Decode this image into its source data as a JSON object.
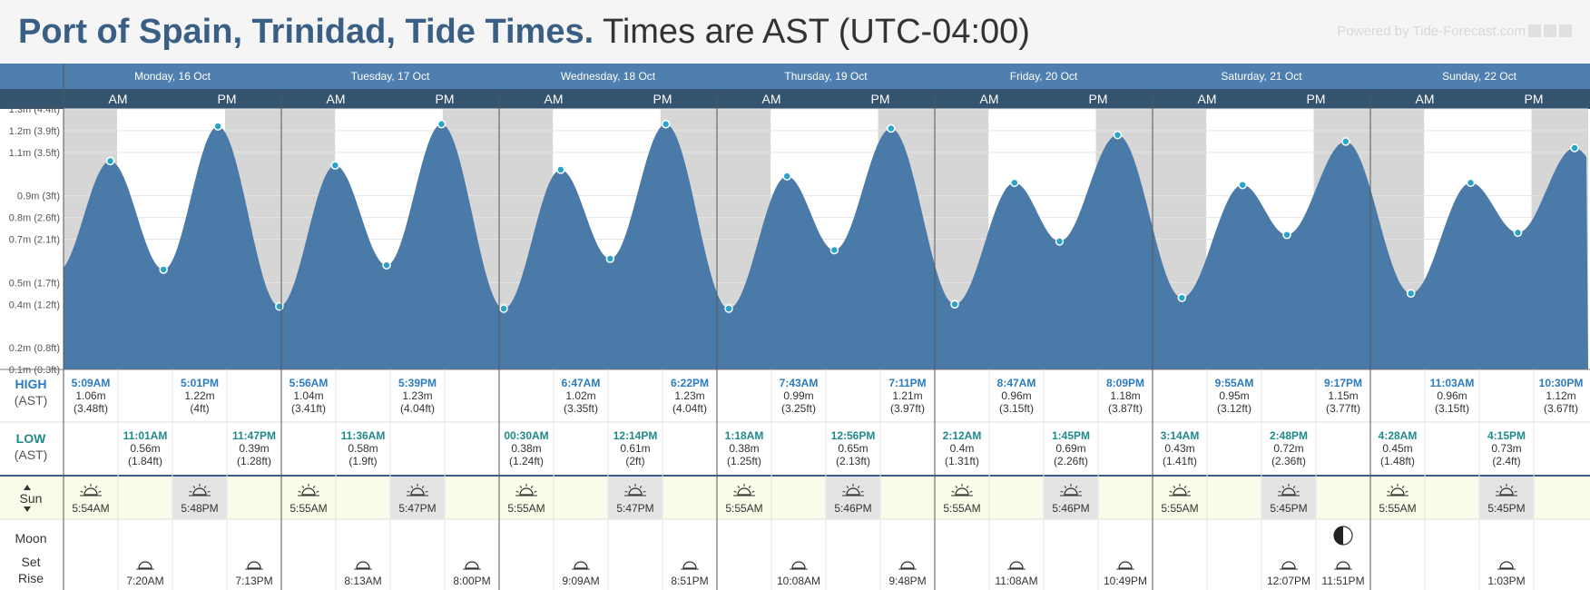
{
  "header": {
    "location": "Port of Spain, Trinidad, Tide Times.",
    "timezone": "Times are AST (UTC-04:00)",
    "powered_by": "Powered by Tide-Forecast.com"
  },
  "row_labels": {
    "high": "HIGH",
    "high_tz": "(AST)",
    "low": "LOW",
    "low_tz": "(AST)",
    "sun": "Sun",
    "moon": "Moon",
    "set": "Set",
    "rise": "Rise"
  },
  "colors": {
    "tide_fill": "#4a7aa8",
    "header_blue": "#4f7fae",
    "ampm_bar": "#35546f",
    "night_grey": "#d6d6d6",
    "marker": "#2aa3c9",
    "high_text": "#2a7bbf",
    "low_text": "#1f8a8a",
    "sun_bg": "#fbfbea"
  },
  "chart_data": {
    "type": "area",
    "title": "Port of Spain, Trinidad, Tide Times.",
    "ylabel": "",
    "ylim": [
      0.1,
      1.3
    ],
    "yticks": [
      {
        "v": 0.1,
        "label": "0.1m (0.3ft)"
      },
      {
        "v": 0.2,
        "label": "0.2m (0.8ft)"
      },
      {
        "v": 0.4,
        "label": "0.4m (1.2ft)"
      },
      {
        "v": 0.5,
        "label": "0.5m (1.7ft)"
      },
      {
        "v": 0.7,
        "label": "0.7m (2.1ft)"
      },
      {
        "v": 0.8,
        "label": "0.8m (2.6ft)"
      },
      {
        "v": 0.9,
        "label": "0.9m (3ft)"
      },
      {
        "v": 1.1,
        "label": "1.1m (3.5ft)"
      },
      {
        "v": 1.2,
        "label": "1.2m (3.9ft)"
      },
      {
        "v": 1.3,
        "label": "1.3m (4.4ft)"
      }
    ],
    "days": [
      "Monday, 16 Oct",
      "Tuesday, 17 Oct",
      "Wednesday, 18 Oct",
      "Thursday, 19 Oct",
      "Friday, 20 Oct",
      "Saturday, 21 Oct",
      "Sunday, 22 Oct"
    ],
    "ampm": [
      "AM",
      "PM"
    ],
    "tides": [
      {
        "day": 0,
        "time": "5:09AM",
        "h": 1.06,
        "ft": "3.48ft",
        "type": "high"
      },
      {
        "day": 0,
        "time": "11:01AM",
        "h": 0.56,
        "ft": "1.84ft",
        "type": "low"
      },
      {
        "day": 0,
        "time": "5:01PM",
        "h": 1.22,
        "ft": "4ft",
        "type": "high"
      },
      {
        "day": 0,
        "time": "11:47PM",
        "h": 0.39,
        "ft": "1.28ft",
        "type": "low"
      },
      {
        "day": 1,
        "time": "5:56AM",
        "h": 1.04,
        "ft": "3.41ft",
        "type": "high"
      },
      {
        "day": 1,
        "time": "11:36AM",
        "h": 0.58,
        "ft": "1.9ft",
        "type": "low"
      },
      {
        "day": 1,
        "time": "5:39PM",
        "h": 1.23,
        "ft": "4.04ft",
        "type": "high"
      },
      {
        "day": 2,
        "time": "00:30AM",
        "h": 0.38,
        "ft": "1.24ft",
        "type": "low"
      },
      {
        "day": 2,
        "time": "6:47AM",
        "h": 1.02,
        "ft": "3.35ft",
        "type": "high"
      },
      {
        "day": 2,
        "time": "12:14PM",
        "h": 0.61,
        "ft": "2ft",
        "type": "low"
      },
      {
        "day": 2,
        "time": "6:22PM",
        "h": 1.23,
        "ft": "4.04ft",
        "type": "high"
      },
      {
        "day": 3,
        "time": "1:18AM",
        "h": 0.38,
        "ft": "1.25ft",
        "type": "low"
      },
      {
        "day": 3,
        "time": "7:43AM",
        "h": 0.99,
        "ft": "3.25ft",
        "type": "high"
      },
      {
        "day": 3,
        "time": "12:56PM",
        "h": 0.65,
        "ft": "2.13ft",
        "type": "low"
      },
      {
        "day": 3,
        "time": "7:11PM",
        "h": 1.21,
        "ft": "3.97ft",
        "type": "high"
      },
      {
        "day": 4,
        "time": "2:12AM",
        "h": 0.4,
        "ft": "1.31ft",
        "type": "low"
      },
      {
        "day": 4,
        "time": "8:47AM",
        "h": 0.96,
        "ft": "3.15ft",
        "type": "high"
      },
      {
        "day": 4,
        "time": "1:45PM",
        "h": 0.69,
        "ft": "2.26ft",
        "type": "low"
      },
      {
        "day": 4,
        "time": "8:09PM",
        "h": 1.18,
        "ft": "3.87ft",
        "type": "high"
      },
      {
        "day": 5,
        "time": "3:14AM",
        "h": 0.43,
        "ft": "1.41ft",
        "type": "low"
      },
      {
        "day": 5,
        "time": "9:55AM",
        "h": 0.95,
        "ft": "3.12ft",
        "type": "high"
      },
      {
        "day": 5,
        "time": "2:48PM",
        "h": 0.72,
        "ft": "2.36ft",
        "type": "low"
      },
      {
        "day": 5,
        "time": "9:17PM",
        "h": 1.15,
        "ft": "3.77ft",
        "type": "high"
      },
      {
        "day": 6,
        "time": "4:28AM",
        "h": 0.45,
        "ft": "1.48ft",
        "type": "low"
      },
      {
        "day": 6,
        "time": "11:03AM",
        "h": 0.96,
        "ft": "3.15ft",
        "type": "high"
      },
      {
        "day": 6,
        "time": "4:15PM",
        "h": 0.73,
        "ft": "2.4ft",
        "type": "low"
      },
      {
        "day": 6,
        "time": "10:30PM",
        "h": 1.12,
        "ft": "3.67ft",
        "type": "high"
      }
    ],
    "sun": [
      {
        "rise": "5:54AM",
        "set": "5:48PM"
      },
      {
        "rise": "5:55AM",
        "set": "5:47PM"
      },
      {
        "rise": "5:55AM",
        "set": "5:47PM"
      },
      {
        "rise": "5:55AM",
        "set": "5:46PM"
      },
      {
        "rise": "5:55AM",
        "set": "5:46PM"
      },
      {
        "rise": "5:55AM",
        "set": "5:45PM"
      },
      {
        "rise": "5:55AM",
        "set": "5:45PM"
      }
    ],
    "moon": [
      {
        "day": 0,
        "time": "7:20AM",
        "event": "set"
      },
      {
        "day": 0,
        "time": "7:13PM",
        "event": "rise"
      },
      {
        "day": 1,
        "time": "8:13AM",
        "event": "set"
      },
      {
        "day": 1,
        "time": "8:00PM",
        "event": "rise"
      },
      {
        "day": 2,
        "time": "9:09AM",
        "event": "set"
      },
      {
        "day": 2,
        "time": "8:51PM",
        "event": "rise"
      },
      {
        "day": 3,
        "time": "10:08AM",
        "event": "set"
      },
      {
        "day": 3,
        "time": "9:48PM",
        "event": "rise"
      },
      {
        "day": 4,
        "time": "11:08AM",
        "event": "set"
      },
      {
        "day": 4,
        "time": "10:49PM",
        "event": "rise"
      },
      {
        "day": 5,
        "time": "12:07PM",
        "event": "set"
      },
      {
        "day": 5,
        "time": "11:51PM",
        "event": "rise",
        "phase_icon": true
      },
      {
        "day": 6,
        "time": "1:03PM",
        "event": "set"
      }
    ]
  }
}
